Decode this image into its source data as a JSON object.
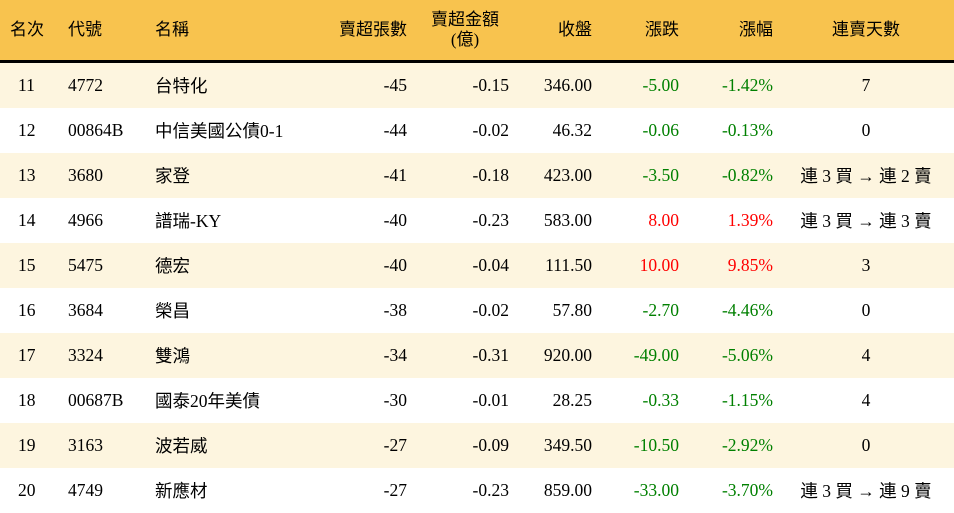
{
  "colors": {
    "header_bg": "#F8C34E",
    "row_alt_bg": "#FDF5DF",
    "up_red": "#FF0000",
    "down_green": "#008000",
    "border_black": "#000000"
  },
  "chart_data": {
    "type": "table",
    "columns": [
      {
        "label": "名次"
      },
      {
        "label": "代號"
      },
      {
        "label": "名稱"
      },
      {
        "label": "賣超張數"
      },
      {
        "label": "賣超金額",
        "label2": "(億)"
      },
      {
        "label": "收盤"
      },
      {
        "label": "漲跌"
      },
      {
        "label": "漲幅"
      },
      {
        "label": "連賣天數"
      }
    ],
    "rows": [
      {
        "rank": "11",
        "code": "4772",
        "name": "台特化",
        "sell_volume": "-45",
        "sell_amount": "-0.15",
        "close": "346.00",
        "change": "-5.00",
        "change_pct": "-1.42%",
        "streak": "7",
        "trend": "down"
      },
      {
        "rank": "12",
        "code": "00864B",
        "name": "中信美國公債0-1",
        "sell_volume": "-44",
        "sell_amount": "-0.02",
        "close": "46.32",
        "change": "-0.06",
        "change_pct": "-0.13%",
        "streak": "0",
        "trend": "down"
      },
      {
        "rank": "13",
        "code": "3680",
        "name": "家登",
        "sell_volume": "-41",
        "sell_amount": "-0.18",
        "close": "423.00",
        "change": "-3.50",
        "change_pct": "-0.82%",
        "streak": "連 3 買 → 連 2 賣",
        "trend": "down"
      },
      {
        "rank": "14",
        "code": "4966",
        "name": "譜瑞-KY",
        "sell_volume": "-40",
        "sell_amount": "-0.23",
        "close": "583.00",
        "change": "8.00",
        "change_pct": "1.39%",
        "streak": "連 3 買 → 連 3 賣",
        "trend": "up"
      },
      {
        "rank": "15",
        "code": "5475",
        "name": "德宏",
        "sell_volume": "-40",
        "sell_amount": "-0.04",
        "close": "111.50",
        "change": "10.00",
        "change_pct": "9.85%",
        "streak": "3",
        "trend": "up"
      },
      {
        "rank": "16",
        "code": "3684",
        "name": "榮昌",
        "sell_volume": "-38",
        "sell_amount": "-0.02",
        "close": "57.80",
        "change": "-2.70",
        "change_pct": "-4.46%",
        "streak": "0",
        "trend": "down"
      },
      {
        "rank": "17",
        "code": "3324",
        "name": "雙鴻",
        "sell_volume": "-34",
        "sell_amount": "-0.31",
        "close": "920.00",
        "change": "-49.00",
        "change_pct": "-5.06%",
        "streak": "4",
        "trend": "down"
      },
      {
        "rank": "18",
        "code": "00687B",
        "name": "國泰20年美債",
        "sell_volume": "-30",
        "sell_amount": "-0.01",
        "close": "28.25",
        "change": "-0.33",
        "change_pct": "-1.15%",
        "streak": "4",
        "trend": "down"
      },
      {
        "rank": "19",
        "code": "3163",
        "name": "波若威",
        "sell_volume": "-27",
        "sell_amount": "-0.09",
        "close": "349.50",
        "change": "-10.50",
        "change_pct": "-2.92%",
        "streak": "0",
        "trend": "down"
      },
      {
        "rank": "20",
        "code": "4749",
        "name": "新應材",
        "sell_volume": "-27",
        "sell_amount": "-0.23",
        "close": "859.00",
        "change": "-33.00",
        "change_pct": "-3.70%",
        "streak": "連 3 買 → 連 9 賣",
        "trend": "down"
      }
    ]
  }
}
